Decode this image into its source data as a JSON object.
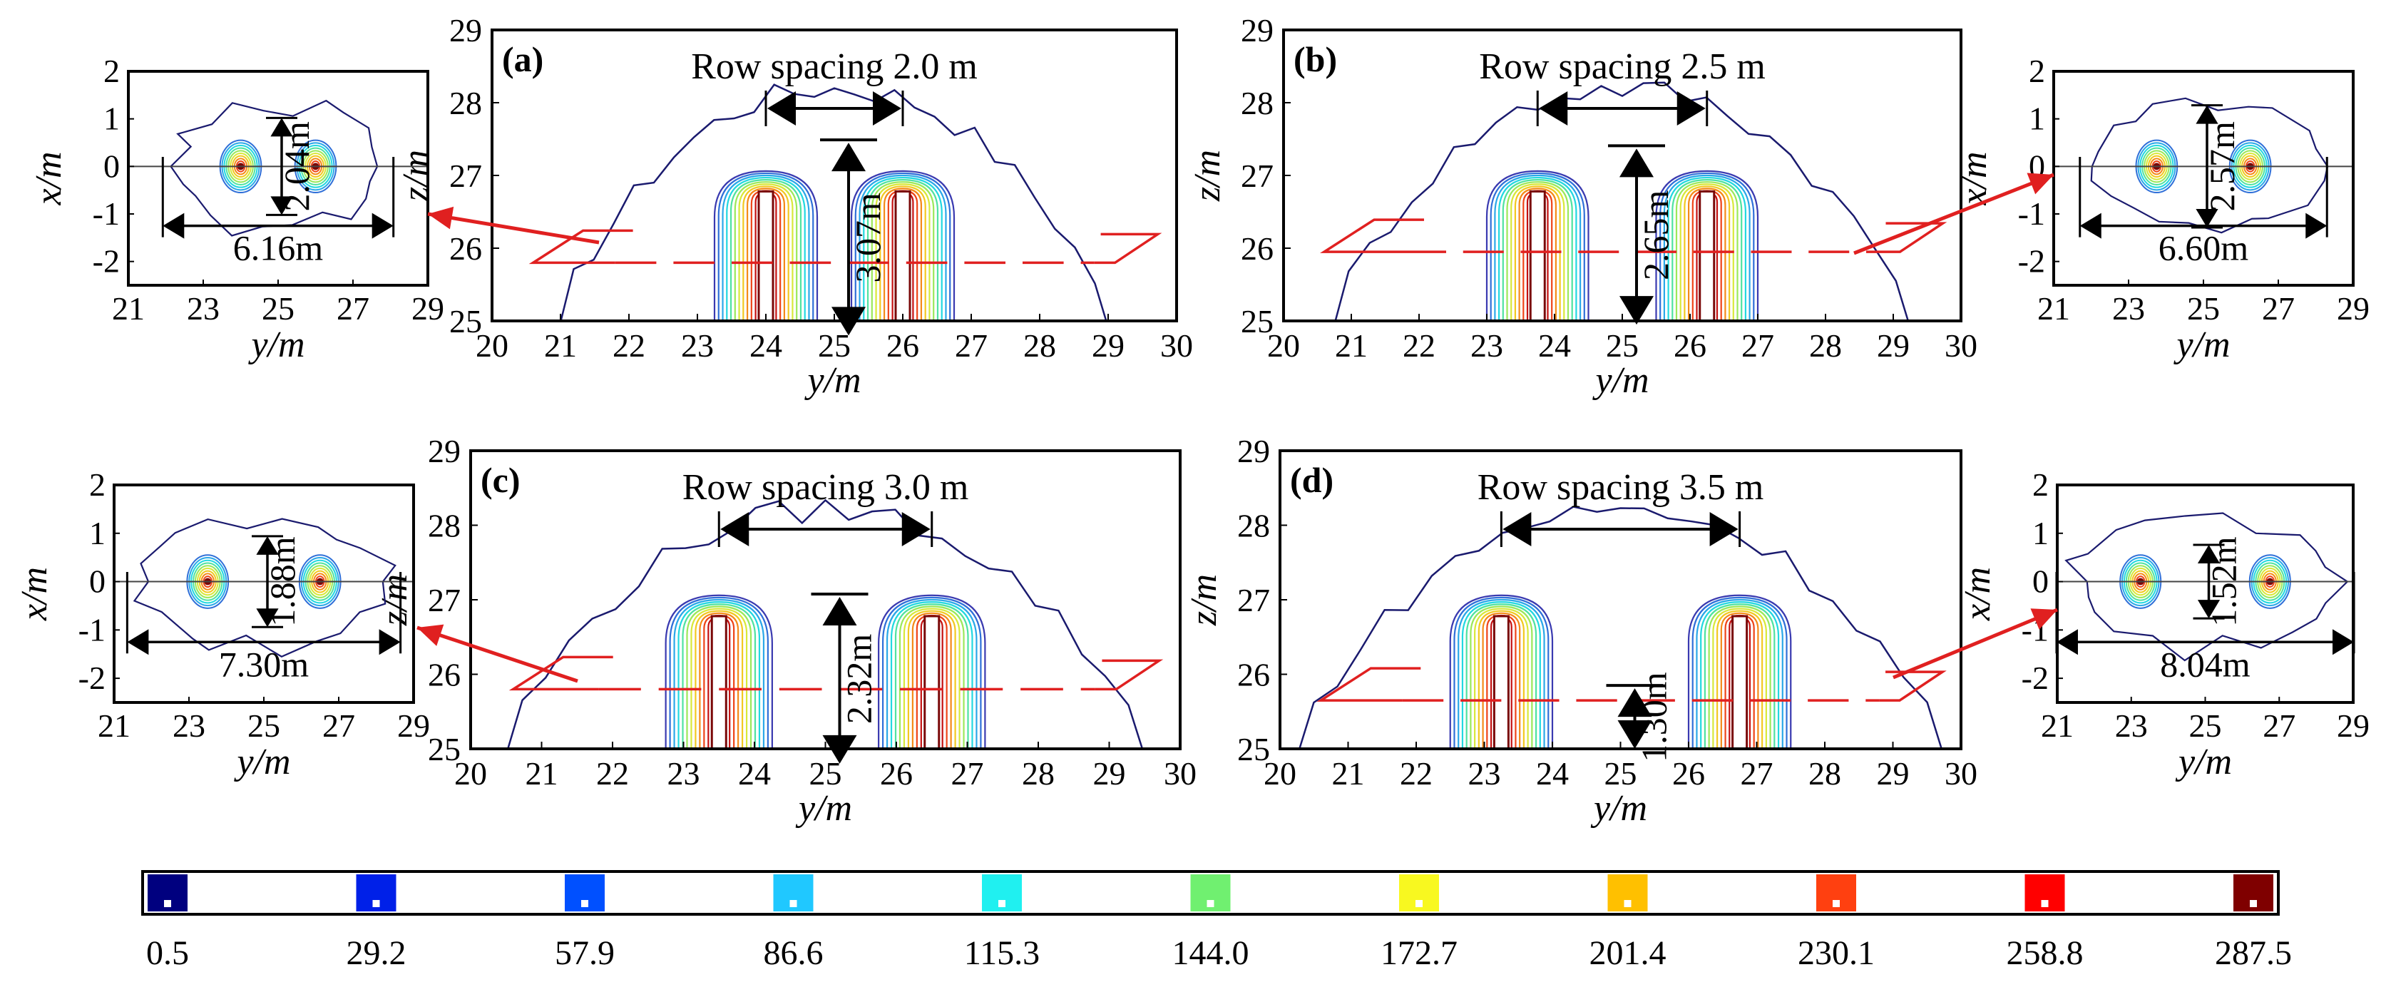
{
  "colors": {
    "contour_palette": [
      "#191970",
      "#3a3ab0",
      "#2f6fd8",
      "#2aa8e8",
      "#22d8e0",
      "#4fe2a0",
      "#9be85a",
      "#d8e83a",
      "#f2c820",
      "#f48a18",
      "#ee4418",
      "#c41010",
      "#7a0808"
    ],
    "section_line": "#e02020",
    "arrow": "#e02020"
  },
  "chart_data": [
    {
      "id": "a",
      "type": "contour",
      "view": "side",
      "panel_label": "(a)",
      "title": "Row spacing 2.0 m",
      "xlabel": "y/m",
      "ylabel": "z/m",
      "xlim": [
        20,
        30
      ],
      "ylim": [
        25,
        29
      ],
      "xticks": [
        "20",
        "21",
        "22",
        "23",
        "24",
        "25",
        "26",
        "27",
        "28",
        "29",
        "30"
      ],
      "yticks": [
        "25",
        "26",
        "27",
        "28",
        "29"
      ],
      "sources_y": [
        24.0,
        26.0
      ],
      "section_z": 25.8,
      "row_spacing": 2.0,
      "dimension_label": "3.07m",
      "dimension_value": 3.07
    },
    {
      "id": "b",
      "type": "contour",
      "view": "side",
      "panel_label": "(b)",
      "title": "Row spacing 2.5 m",
      "xlabel": "y/m",
      "ylabel": "z/m",
      "xlim": [
        20,
        30
      ],
      "ylim": [
        25,
        29
      ],
      "xticks": [
        "20",
        "21",
        "22",
        "23",
        "24",
        "25",
        "26",
        "27",
        "28",
        "29",
        "30"
      ],
      "yticks": [
        "25",
        "26",
        "27",
        "28",
        "29"
      ],
      "sources_y": [
        23.75,
        26.25
      ],
      "section_z": 25.95,
      "row_spacing": 2.5,
      "dimension_label": "2.65m",
      "dimension_value": 2.65
    },
    {
      "id": "c",
      "type": "contour",
      "view": "side",
      "panel_label": "(c)",
      "title": "Row spacing 3.0 m",
      "xlabel": "y/m",
      "ylabel": "z/m",
      "xlim": [
        20,
        30
      ],
      "ylim": [
        25,
        29
      ],
      "xticks": [
        "20",
        "21",
        "22",
        "23",
        "24",
        "25",
        "26",
        "27",
        "28",
        "29",
        "30"
      ],
      "yticks": [
        "25",
        "26",
        "27",
        "28",
        "29"
      ],
      "sources_y": [
        23.5,
        26.5
      ],
      "section_z": 25.8,
      "row_spacing": 3.0,
      "dimension_label": "2.32m",
      "dimension_value": 2.32
    },
    {
      "id": "d",
      "type": "contour",
      "view": "side",
      "panel_label": "(d)",
      "title": "Row spacing 3.5 m",
      "xlabel": "y/m",
      "ylabel": "z/m",
      "xlim": [
        20,
        30
      ],
      "ylim": [
        25,
        29
      ],
      "xticks": [
        "20",
        "21",
        "22",
        "23",
        "24",
        "25",
        "26",
        "27",
        "28",
        "29",
        "30"
      ],
      "yticks": [
        "25",
        "26",
        "27",
        "28",
        "29"
      ],
      "sources_y": [
        23.25,
        26.75
      ],
      "section_z": 25.65,
      "row_spacing": 3.5,
      "dimension_label": "1.30m",
      "dimension_value": 1.3
    },
    {
      "id": "a_plan",
      "type": "contour",
      "view": "plan",
      "xlabel": "y/m",
      "ylabel": "x/m",
      "xlim": [
        21,
        29
      ],
      "ylim": [
        -2.5,
        2
      ],
      "xticks": [
        "21",
        "23",
        "25",
        "27",
        "29"
      ],
      "yticks": [
        "-2",
        "-1",
        "0",
        "1",
        "2"
      ],
      "sources_y": [
        24.0,
        26.0
      ],
      "width_label": "6.16m",
      "width_value": 6.16,
      "height_label": "2.04m",
      "height_value": 2.04
    },
    {
      "id": "b_plan",
      "type": "contour",
      "view": "plan",
      "xlabel": "y/m",
      "ylabel": "x/m",
      "xlim": [
        21,
        29
      ],
      "ylim": [
        -2.5,
        2
      ],
      "xticks": [
        "21",
        "23",
        "25",
        "27",
        "29"
      ],
      "yticks": [
        "-2",
        "-1",
        "0",
        "1",
        "2"
      ],
      "sources_y": [
        23.75,
        26.25
      ],
      "width_label": "6.60m",
      "width_value": 6.6,
      "height_label": "2.57m",
      "height_value": 2.57
    },
    {
      "id": "c_plan",
      "type": "contour",
      "view": "plan",
      "xlabel": "y/m",
      "ylabel": "x/m",
      "xlim": [
        21,
        29
      ],
      "ylim": [
        -2.5,
        2
      ],
      "xticks": [
        "21",
        "23",
        "25",
        "27",
        "29"
      ],
      "yticks": [
        "-2",
        "-1",
        "0",
        "1",
        "2"
      ],
      "sources_y": [
        23.5,
        26.5
      ],
      "width_label": "7.30m",
      "width_value": 7.3,
      "height_label": "1.88m",
      "height_value": 1.88
    },
    {
      "id": "d_plan",
      "type": "contour",
      "view": "plan",
      "xlabel": "y/m",
      "ylabel": "x/m",
      "xlim": [
        21,
        29
      ],
      "ylim": [
        -2.5,
        2
      ],
      "xticks": [
        "21",
        "23",
        "25",
        "27",
        "29"
      ],
      "yticks": [
        "-2",
        "-1",
        "0",
        "1",
        "2"
      ],
      "sources_y": [
        23.25,
        26.75
      ],
      "width_label": "8.04m",
      "width_value": 8.04,
      "height_label": "1.52m",
      "height_value": 1.52
    }
  ],
  "colorbar": {
    "ticks": [
      "0.5",
      "29.2",
      "57.9",
      "86.6",
      "115.3",
      "144.0",
      "172.7",
      "201.4",
      "230.1",
      "258.8",
      "287.5"
    ],
    "values": [
      0.5,
      29.2,
      57.9,
      86.6,
      115.3,
      144.0,
      172.7,
      201.4,
      230.1,
      258.8,
      287.5
    ],
    "swatch_colors": [
      "#00007f",
      "#0020e8",
      "#0050ff",
      "#20c8ff",
      "#20f0f0",
      "#70f070",
      "#f8f820",
      "#ffc000",
      "#ff4010",
      "#ff0000",
      "#7f0000"
    ]
  }
}
